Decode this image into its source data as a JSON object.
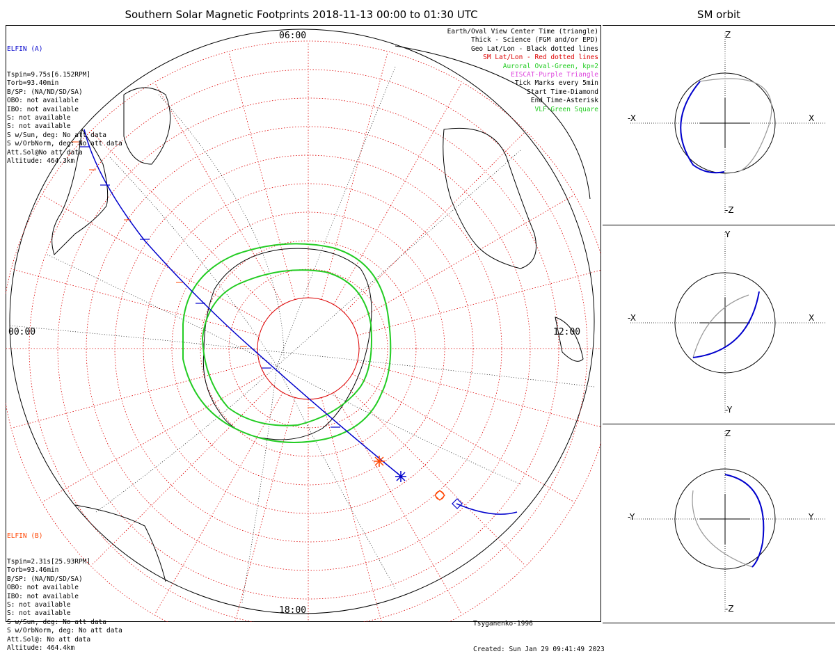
{
  "title": "Southern Solar Magnetic Footprints 2018-11-13 00:00 to 01:30 UTC",
  "orbit_title": "SM orbit",
  "elfin_a": {
    "name": "ELFIN (A)",
    "color": "#0000cc",
    "lines": [
      "Tspin=9.75s[6.152RPM]",
      "Torb=93.40min",
      "B/SP: (NA/ND/SD/SA)",
      "OBO: not available",
      "IBO: not available",
      "S: not available",
      "S: not available",
      "S w/Sun, deg: No att data",
      "S w/OrbNorm, deg: No att data",
      "Att.Sol@No att data",
      "Altitude: 464.3km"
    ]
  },
  "elfin_b": {
    "name": "ELFIN (B)",
    "color": "#ff4400",
    "lines": [
      "Tspin=2.31s[25.93RPM]",
      "Torb=93.46min",
      "B/SP: (NA/ND/SD/SA)",
      "OBO: not available",
      "IBO: not available",
      "S: not available",
      "S: not available",
      "S w/Sun, deg: No att data",
      "S w/OrbNorm, deg: No att data",
      "Att.Sol@: No att data",
      "Altitude: 464.4km"
    ]
  },
  "legend": [
    {
      "text": "Earth/Oval View Center Time (triangle)",
      "color": "#000000"
    },
    {
      "text": "Thick - Science (FGM and/or EPD)",
      "color": "#000000"
    },
    {
      "text": "Geo Lat/Lon - Black dotted lines",
      "color": "#000000"
    },
    {
      "text": "SM Lat/Lon - Red dotted lines",
      "color": "#dd0000"
    },
    {
      "text": "Auroral Oval-Green, kp=2",
      "color": "#22cc22"
    },
    {
      "text": "EISCAT-Purple Triangle",
      "color": "#dd44dd"
    },
    {
      "text": "Tick Marks every 5min",
      "color": "#000000"
    },
    {
      "text": "Start Time-Diamond",
      "color": "#000000"
    },
    {
      "text": "End Time-Asterisk",
      "color": "#000000"
    },
    {
      "text": "VLF-Green Square",
      "color": "#22cc22"
    }
  ],
  "mlt_labels": {
    "top": "06:00",
    "left": "00:00",
    "right": "12:00",
    "bottom": "18:00"
  },
  "credits": {
    "model": "Tsyganenko-1996",
    "created": "Created: Sun Jan 29 09:41:49 2023"
  },
  "orbit_panels": [
    {
      "up": "Z",
      "down": "-Z",
      "left": "-X",
      "right": "X"
    },
    {
      "up": "Y",
      "down": "-Y",
      "left": "-X",
      "right": "X"
    },
    {
      "up": "Z",
      "down": "-Z",
      "left": "-Y",
      "right": "Y"
    }
  ],
  "colors": {
    "oval": "#22cc22",
    "sm_grid": "#dd0000",
    "track_a": "#0000cc",
    "track_b": "#ff4400",
    "orbit_gray": "#999999"
  }
}
